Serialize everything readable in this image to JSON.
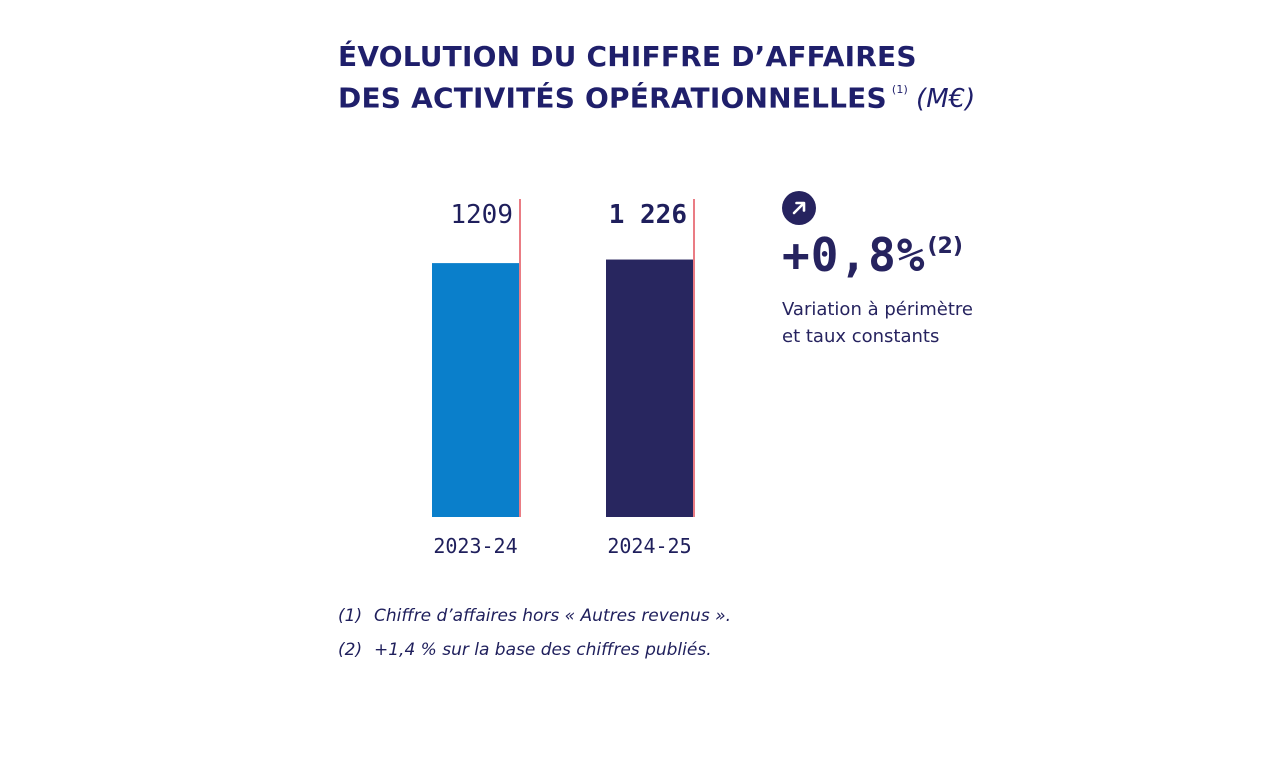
{
  "title": {
    "line1": "ÉVOLUTION DU CHIFFRE D’AFFAIRES",
    "line2": "DES ACTIVITÉS OPÉRATIONNELLES",
    "footnote_ref": "(1)",
    "unit": "(M€)"
  },
  "chart_data": {
    "type": "bar",
    "title": "ÉVOLUTION DU CHIFFRE D’AFFAIRES DES ACTIVITÉS OPÉRATIONNELLES (M€)",
    "categories": [
      "2023-24",
      "2024-25"
    ],
    "values": [
      1209,
      1226
    ],
    "value_labels": [
      "1209",
      "1 226"
    ],
    "colors": [
      "#0a7fcb",
      "#28265f"
    ],
    "marker_line_color": "#e4505c",
    "grid": false
  },
  "variation": {
    "icon": "arrow-up-right-icon",
    "value": "+0,8%",
    "footnote_ref": "(2)",
    "caption_line1": "Variation à périmètre",
    "caption_line2": "et taux constants"
  },
  "footnotes": [
    {
      "num": "(1)",
      "text": "Chiffre d’affaires hors « Autres revenus »."
    },
    {
      "num": "(2)",
      "text": "+1,4 % sur la base des chiffres publiés."
    }
  ]
}
